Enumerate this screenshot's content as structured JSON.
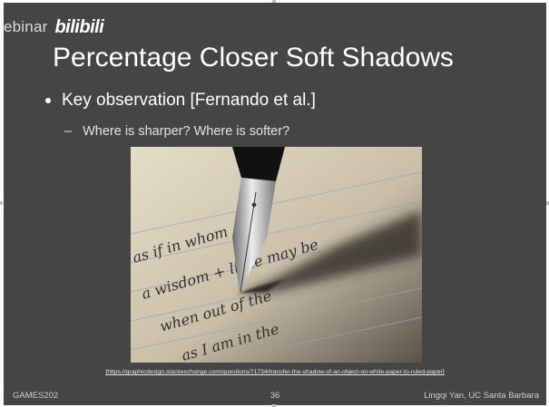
{
  "watermark": {
    "text": "ebinar",
    "logo": "bilibili"
  },
  "slide": {
    "title": "Percentage Closer Soft Shadows",
    "bullet": "Key observation [Fernando et al.]",
    "sub_bullet": "Where is sharper? Where is softer?",
    "sub_bullet_marker": "–",
    "handwriting": [
      "as if in whom",
      "a wisdom + little may be",
      "when out of the",
      "as I am in the"
    ],
    "caption": "[https://graphicdesign.stackexchange.com/questions/71734/transfer-the-shadow-of-an-object-on-white-paper-to-ruled-paper]"
  },
  "footer": {
    "left": "GAMES202",
    "page": "36",
    "right": "Lingqi Yan, UC Santa Barbara"
  },
  "colors": {
    "slide_background": "#454545",
    "title": "#ffffff",
    "text": "#e3e3e3"
  }
}
